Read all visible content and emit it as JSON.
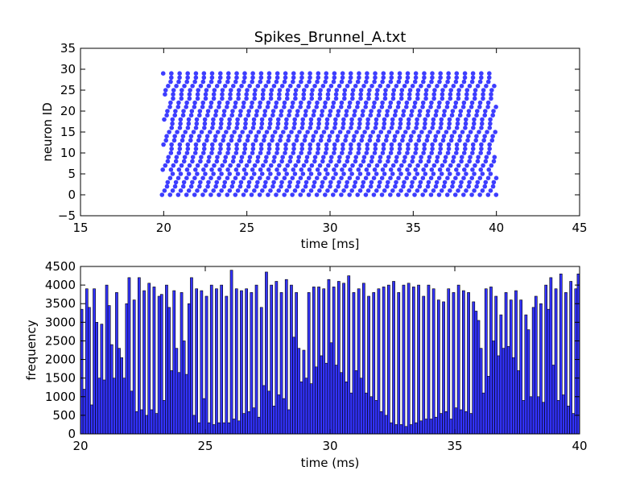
{
  "chart_data": [
    {
      "type": "scatter",
      "title": "Spikes_Brunnel_A.txt",
      "xlabel": "time [ms]",
      "ylabel": "neuron ID",
      "xlim": [
        15,
        45
      ],
      "ylim": [
        -5,
        35
      ],
      "xticks": [
        "15",
        "20",
        "25",
        "30",
        "35",
        "40",
        "45"
      ],
      "yticks": [
        "−5",
        "0",
        "5",
        "10",
        "15",
        "20",
        "25",
        "30",
        "35"
      ],
      "marker_color": "#3333ff",
      "grid": false,
      "neuron_ids": [
        0,
        29
      ],
      "spike_time_range_ms": [
        19.9,
        40.0
      ],
      "spikes_per_neuron": 41,
      "mean_isi_ms": 0.49
    },
    {
      "type": "bar",
      "title": "",
      "xlabel": "time (ms)",
      "ylabel": "frequency",
      "xlim": [
        20,
        40
      ],
      "ylim": [
        0,
        4500
      ],
      "xticks": [
        "20",
        "25",
        "30",
        "35",
        "40"
      ],
      "yticks": [
        "0",
        "500",
        "1000",
        "1500",
        "2000",
        "2500",
        "3000",
        "3500",
        "4000",
        "4500"
      ],
      "bar_color": "#3333ff",
      "grid": false,
      "bin_start_ms": 20,
      "bin_width_ms": 0.1,
      "values": [
        3350,
        1200,
        3900,
        3400,
        780,
        3900,
        3000,
        1500,
        2950,
        1450,
        4000,
        3450,
        2400,
        1500,
        3800,
        2300,
        2050,
        1500,
        3500,
        4200,
        1150,
        3600,
        600,
        4200,
        650,
        3850,
        500,
        4050,
        650,
        3950,
        550,
        3700,
        3750,
        900,
        4000,
        3400,
        1700,
        3850,
        2300,
        1650,
        3800,
        2500,
        1600,
        3500,
        4200,
        500,
        3900,
        300,
        3850,
        950,
        3700,
        300,
        4000,
        250,
        3900,
        300,
        4000,
        300,
        3700,
        300,
        4400,
        400,
        3900,
        350,
        3850,
        550,
        3900,
        600,
        3800,
        700,
        4000,
        450,
        3400,
        1300,
        4350,
        1150,
        4000,
        750,
        4100,
        1050,
        3800,
        950,
        4150,
        650,
        4000,
        2600,
        3800,
        2300,
        1400,
        2250,
        1500,
        3800,
        1350,
        3950,
        1800,
        3950,
        2100,
        3900,
        1900,
        4150,
        2450,
        3950,
        1850,
        4100,
        1650,
        4050,
        1400,
        4250,
        1100,
        3800,
        1700,
        3900,
        1500,
        4050,
        1100,
        3700,
        1000,
        3800,
        900,
        3900,
        600,
        3950,
        500,
        4000,
        300,
        4100,
        250,
        3800,
        250,
        4000,
        200,
        4050,
        250,
        3950,
        300,
        4000,
        350,
        3700,
        400,
        4000,
        400,
        3900,
        450,
        3600,
        550,
        3550,
        600,
        3900,
        400,
        3800,
        700,
        4000,
        650,
        3850,
        600,
        3800,
        550,
        3550,
        3300,
        3050,
        2300,
        1100,
        3900,
        1550,
        3950,
        2500,
        3700,
        2100,
        3200,
        2300,
        3800,
        2350,
        3600,
        2050,
        3850,
        1700,
        3600,
        900,
        3200,
        2800,
        1000,
        3400,
        3700,
        1000,
        3500,
        850,
        4000,
        3350,
        4200,
        1850,
        3900,
        900,
        4300,
        1050,
        3800,
        750,
        4100,
        550,
        3900,
        4300,
        250,
        4100,
        3600,
        250,
        4100,
        3850
      ]
    }
  ]
}
